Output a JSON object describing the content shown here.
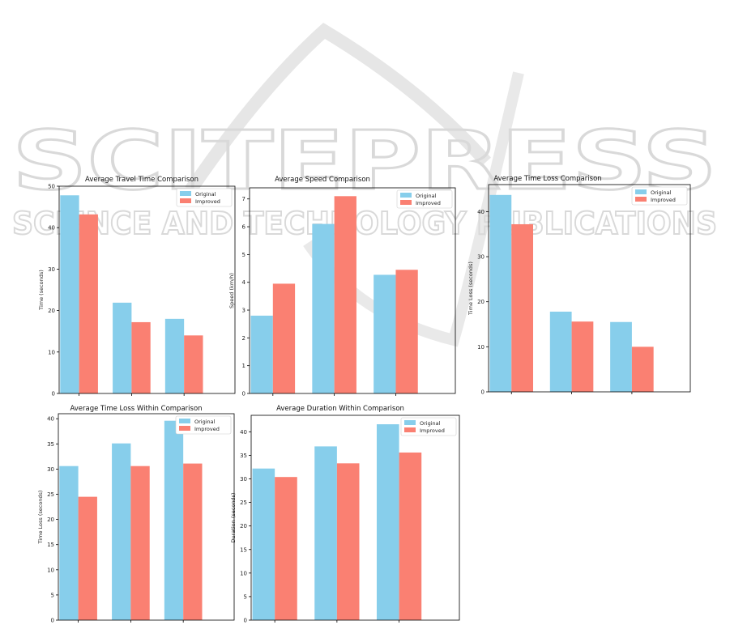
{
  "watermark": {
    "line1": "SCITEPRESS",
    "line2": "SCIENCE AND TECHNOLOGY PUBLICATIONS"
  },
  "colors": {
    "original": "#87CEEB",
    "improved": "#FA8072",
    "watermark": "#d9d9d9"
  },
  "chart_data": [
    {
      "type": "bar",
      "title": "Average Travel Time Comparison",
      "xlabel": "",
      "ylabel": "Time (seconds)",
      "categories": [
        "",
        "",
        ""
      ],
      "ylim": [
        0,
        50
      ],
      "yticks": [
        0,
        10,
        20,
        30,
        40,
        50
      ],
      "legend": "top-right",
      "series": [
        {
          "name": "Original",
          "values": [
            47.8,
            21.9,
            18.0
          ]
        },
        {
          "name": "Improved",
          "values": [
            43.2,
            17.2,
            14.0
          ]
        }
      ]
    },
    {
      "type": "bar",
      "title": "Average Speed Comparison",
      "xlabel": "",
      "ylabel": "Speed (km/h)",
      "categories": [
        "",
        "",
        ""
      ],
      "ylim": [
        0,
        7.4
      ],
      "yticks": [
        0,
        1,
        2,
        3,
        4,
        5,
        6,
        7
      ],
      "legend": "top-right",
      "series": [
        {
          "name": "Original",
          "values": [
            2.8,
            6.1,
            4.27
          ]
        },
        {
          "name": "Improved",
          "values": [
            3.95,
            7.1,
            4.45
          ]
        }
      ]
    },
    {
      "type": "bar",
      "title": "Average Time Loss Comparison",
      "xlabel": "",
      "ylabel": "Time Loss (seconds)",
      "categories": [
        "",
        "",
        ""
      ],
      "ylim": [
        0,
        46
      ],
      "yticks": [
        0,
        10,
        20,
        30,
        40
      ],
      "legend": "top-right",
      "series": [
        {
          "name": "Original",
          "values": [
            43.7,
            17.8,
            15.5
          ]
        },
        {
          "name": "Improved",
          "values": [
            37.2,
            15.6,
            10.0
          ]
        }
      ]
    },
    {
      "type": "bar",
      "title": "Average Time Loss Within Comparison",
      "xlabel": "",
      "ylabel": "Time Loss (seconds)",
      "categories": [
        "",
        "",
        ""
      ],
      "ylim": [
        0,
        41
      ],
      "yticks": [
        0,
        5,
        10,
        15,
        20,
        25,
        30,
        35,
        40
      ],
      "legend": "top-right",
      "series": [
        {
          "name": "Original",
          "values": [
            30.6,
            35.1,
            39.6
          ]
        },
        {
          "name": "Improved",
          "values": [
            24.5,
            30.6,
            31.1
          ]
        }
      ]
    },
    {
      "type": "bar",
      "title": "Average Duration Within Comparison",
      "xlabel": "",
      "ylabel": "Duration (seconds)",
      "categories": [
        "",
        "",
        ""
      ],
      "ylim": [
        0,
        43.5
      ],
      "yticks": [
        0,
        5,
        10,
        15,
        20,
        25,
        30,
        35,
        40
      ],
      "legend": "top-right",
      "series": [
        {
          "name": "Original",
          "values": [
            32.2,
            36.9,
            41.6
          ]
        },
        {
          "name": "Improved",
          "values": [
            30.4,
            33.3,
            35.6
          ]
        }
      ]
    }
  ]
}
